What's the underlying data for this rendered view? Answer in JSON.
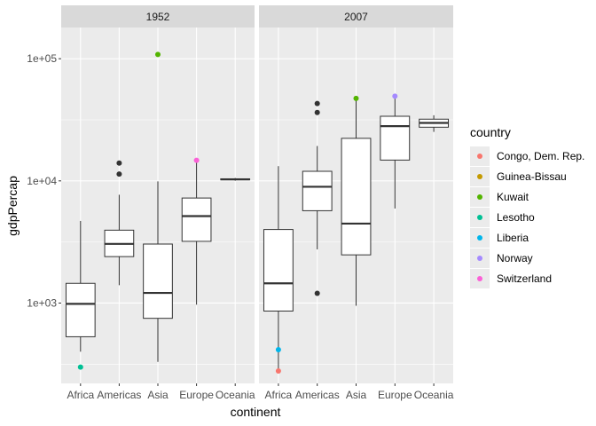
{
  "chart_data": {
    "type": "boxplot",
    "facets": [
      "1952",
      "2007"
    ],
    "categories": [
      "Africa",
      "Americas",
      "Asia",
      "Europe",
      "Oceania"
    ],
    "xlabel": "continent",
    "ylabel": "gdpPercap",
    "y_scale": "log10",
    "ylim": [
      220,
      180000
    ],
    "y_ticks": [
      {
        "value": 1000,
        "label": "1e+03"
      },
      {
        "value": 10000,
        "label": "1e+04"
      },
      {
        "value": 100000,
        "label": "1e+05"
      }
    ],
    "grid": true,
    "legend": {
      "title": "country",
      "position": "right",
      "entries": [
        {
          "name": "Congo, Dem. Rep.",
          "color": "#F8766D"
        },
        {
          "name": "Guinea-Bissau",
          "color": "#C49A00"
        },
        {
          "name": "Kuwait",
          "color": "#53B400"
        },
        {
          "name": "Lesotho",
          "color": "#00C094"
        },
        {
          "name": "Liberia",
          "color": "#00B6EB"
        },
        {
          "name": "Norway",
          "color": "#A58AFF"
        },
        {
          "name": "Switzerland",
          "color": "#FB61D7"
        }
      ]
    },
    "panels": [
      {
        "facet": "1952",
        "boxes": [
          {
            "category": "Africa",
            "min": 400,
            "q1": 530,
            "median": 985,
            "q3": 1450,
            "max": 4700
          },
          {
            "category": "Americas",
            "min": 1400,
            "q1": 2400,
            "median": 3050,
            "q3": 3950,
            "max": 7700
          },
          {
            "category": "Asia",
            "min": 330,
            "q1": 750,
            "median": 1210,
            "q3": 3040,
            "max": 9900
          },
          {
            "category": "Europe",
            "min": 970,
            "q1": 3200,
            "median": 5150,
            "q3": 7240,
            "max": 14500
          },
          {
            "category": "Oceania",
            "min": 10039,
            "q1": 10200,
            "median": 10298,
            "q3": 10400,
            "max": 10557
          }
        ],
        "outliers": [
          {
            "category": "Americas",
            "value": 13990
          },
          {
            "category": "Americas",
            "value": 11370
          }
        ],
        "highlighted_points": [
          {
            "category": "Africa",
            "country": "Lesotho",
            "value": 299
          },
          {
            "category": "Asia",
            "country": "Kuwait",
            "value": 108382
          },
          {
            "category": "Europe",
            "country": "Switzerland",
            "value": 14734
          }
        ]
      },
      {
        "facet": "2007",
        "boxes": [
          {
            "category": "Africa",
            "min": 277,
            "q1": 860,
            "median": 1450,
            "q3": 4000,
            "max": 13200
          },
          {
            "category": "Americas",
            "min": 2750,
            "q1": 5700,
            "median": 8950,
            "q3": 11980,
            "max": 19300
          },
          {
            "category": "Asia",
            "min": 950,
            "q1": 2480,
            "median": 4470,
            "q3": 22300,
            "max": 47300
          },
          {
            "category": "Europe",
            "min": 5940,
            "q1": 14800,
            "median": 28050,
            "q3": 33800,
            "max": 49357
          },
          {
            "category": "Oceania",
            "min": 25185,
            "q1": 27500,
            "median": 29810,
            "q3": 32000,
            "max": 34435
          }
        ],
        "outliers": [
          {
            "category": "Americas",
            "value": 42952
          },
          {
            "category": "Americas",
            "value": 36319
          },
          {
            "category": "Americas",
            "value": 1202
          }
        ],
        "highlighted_points": [
          {
            "category": "Africa",
            "country": "Congo, Dem. Rep.",
            "value": 278
          },
          {
            "category": "Africa",
            "country": "Liberia",
            "value": 415
          },
          {
            "category": "Asia",
            "country": "Kuwait",
            "value": 47307
          },
          {
            "category": "Europe",
            "country": "Norway",
            "value": 49357
          }
        ]
      }
    ]
  }
}
